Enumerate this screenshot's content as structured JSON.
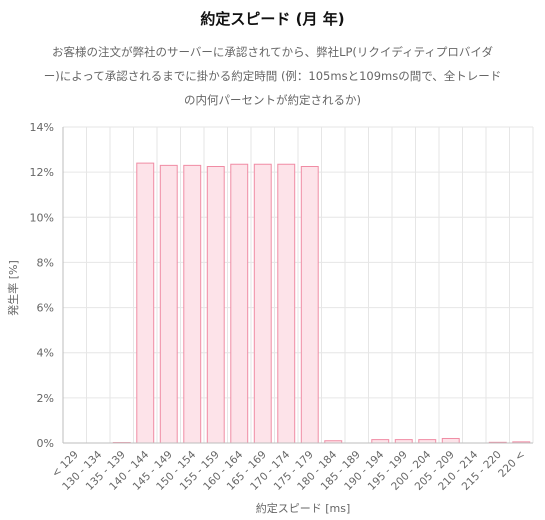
{
  "chart_data": {
    "type": "bar",
    "title": "約定スピード (月 年)",
    "subtitle_lines": [
      "お客様の注文が弊社のサーバーに承認されてから、弊社LP(リクイディティプロバイダ",
      "ー)によって承認されるまでに掛かる約定時間 (例：105msと109msの間で、全トレード",
      "の内何パーセントが約定されるか)"
    ],
    "xlabel": "約定スピード [ms]",
    "ylabel": "発生率 [%]",
    "ylim": [
      0,
      14
    ],
    "yticks": [
      "0%",
      "2%",
      "4%",
      "6%",
      "8%",
      "10%",
      "12%",
      "14%"
    ],
    "grid": true,
    "legend": "none",
    "categories": [
      "< 129",
      "130 - 134",
      "135 - 139",
      "140 - 144",
      "145 - 149",
      "150 - 154",
      "155 - 159",
      "160 - 164",
      "165 - 169",
      "170 - 174",
      "175 - 179",
      "180 - 184",
      "185 - 189",
      "190 - 194",
      "195 - 199",
      "200 - 204",
      "205 - 209",
      "210 - 214",
      "215 - 220",
      "220 <"
    ],
    "values": [
      0,
      0,
      0.02,
      12.4,
      12.3,
      12.3,
      12.25,
      12.35,
      12.35,
      12.35,
      12.25,
      0.1,
      0,
      0.15,
      0.15,
      0.15,
      0.2,
      0,
      0.03,
      0.05
    ],
    "colors": {
      "bar_fill": "#fde3e9",
      "bar_stroke": "#f08ca4",
      "grid": "#e6e6e6",
      "axis": "#bdbdbd",
      "text": "#666666"
    }
  }
}
